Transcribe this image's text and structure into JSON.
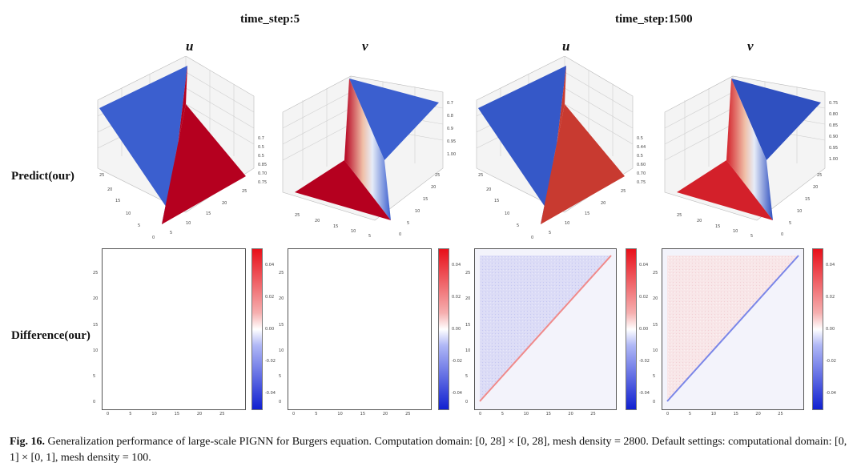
{
  "figure": {
    "headers": [
      {
        "time_step": "time_step:5",
        "vars": [
          "u",
          "v"
        ]
      },
      {
        "time_step": "time_step:1500",
        "vars": [
          "u",
          "v"
        ]
      }
    ],
    "row_labels": {
      "predict": "Predict(our)",
      "difference": "Difference(our)"
    },
    "surface_z_ticks": {
      "p1": [
        "0.7",
        "0.5",
        "0.5",
        "0.85",
        "0.70",
        "0.75"
      ],
      "p2": [
        "0.7",
        "0.8",
        "0.9",
        "0.95",
        "1.00"
      ],
      "p3": [
        "0.5",
        "0.44",
        "0.5",
        "0.60",
        "0.70",
        "0.75"
      ],
      "p4": [
        "0.75",
        "0.80",
        "0.85",
        "0.90",
        "0.95",
        "1.00"
      ]
    },
    "surface_xy_ticks": [
      "0",
      "5",
      "10",
      "15",
      "20",
      "25"
    ],
    "heatmap_ticks": [
      "0",
      "5",
      "10",
      "15",
      "20",
      "25"
    ],
    "colorbar_ticks": [
      "0.04",
      "0.02",
      "0.00",
      "-0.02",
      "-0.04"
    ],
    "colors": {
      "red": "#b5001f",
      "blue": "#3b5fcf",
      "diff_red": "#e83a3a",
      "diff_blue": "#4f5fe0"
    }
  },
  "caption": {
    "label": "Fig. 16.",
    "text": "Generalization performance of large-scale PIGNN for Burgers equation. Computation domain: [0, 28] × [0, 28], mesh density = 2800. Default settings: computational domain: [0, 1] × [0, 1], mesh density = 100."
  }
}
